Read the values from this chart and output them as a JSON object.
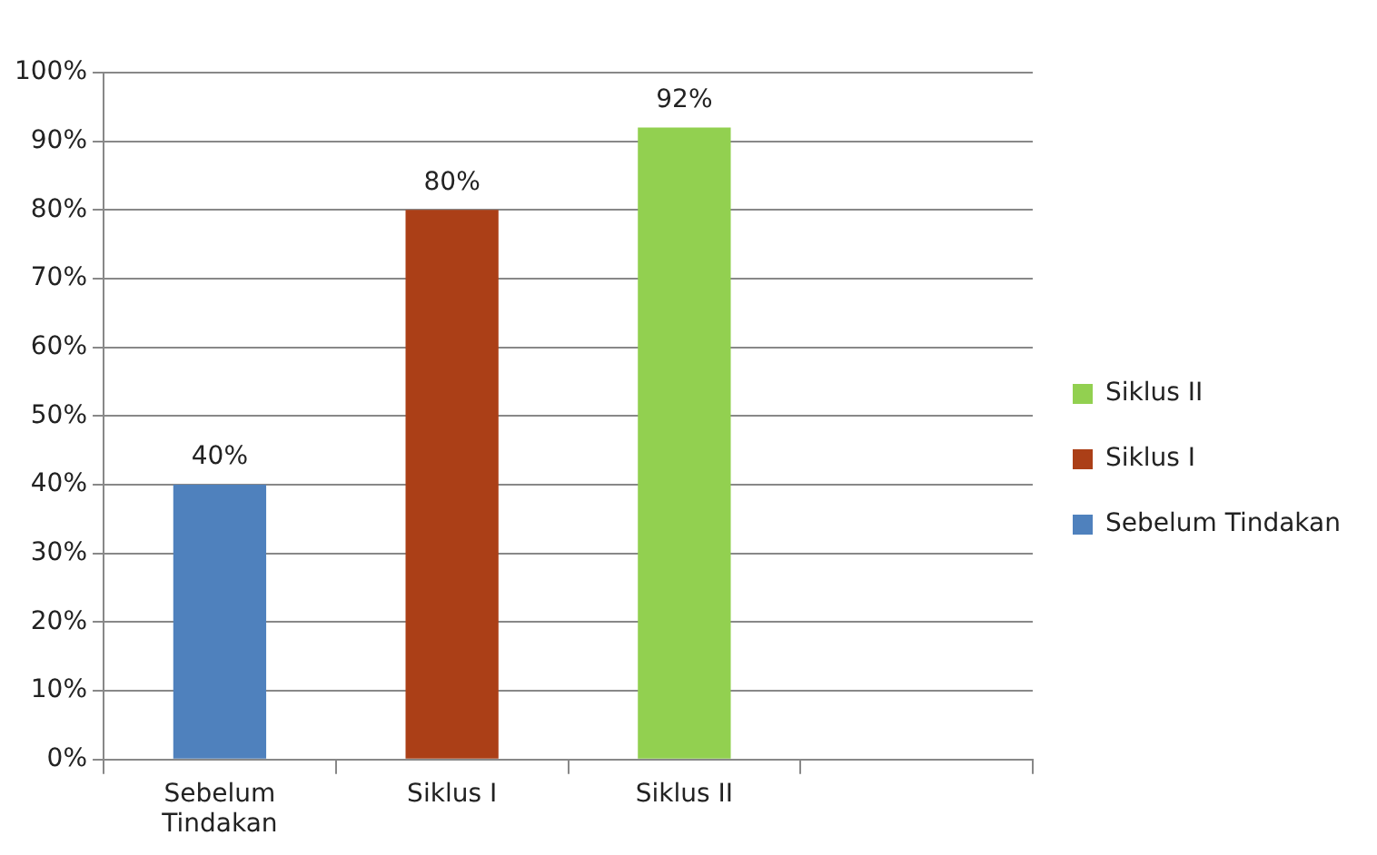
{
  "chart_data": {
    "type": "bar",
    "categories": [
      "Sebelum Tindakan",
      "Siklus I",
      "Siklus II",
      null
    ],
    "series": [
      {
        "name": "Sebelum Tindakan",
        "color": "#4f81bd",
        "values": [
          40,
          null,
          null,
          null
        ],
        "value_labels": [
          "40%",
          null,
          null,
          null
        ]
      },
      {
        "name": "Siklus I",
        "color": "#ab3f17",
        "values": [
          null,
          80,
          null,
          null
        ],
        "value_labels": [
          null,
          "80%",
          null,
          null
        ]
      },
      {
        "name": "Siklus II",
        "color": "#92d050",
        "values": [
          null,
          null,
          92,
          null
        ],
        "value_labels": [
          null,
          null,
          "92%",
          null
        ]
      }
    ],
    "ylim": [
      0,
      100
    ],
    "yticks": [
      {
        "value": 0,
        "label": "0%"
      },
      {
        "value": 10,
        "label": "10%"
      },
      {
        "value": 20,
        "label": "20%"
      },
      {
        "value": 30,
        "label": "30%"
      },
      {
        "value": 40,
        "label": "40%"
      },
      {
        "value": 50,
        "label": "50%"
      },
      {
        "value": 60,
        "label": "60%"
      },
      {
        "value": 70,
        "label": "70%"
      },
      {
        "value": 80,
        "label": "80%"
      },
      {
        "value": 90,
        "label": "90%"
      },
      {
        "value": 100,
        "label": "100%"
      }
    ],
    "grid": "y",
    "legend": "right"
  }
}
